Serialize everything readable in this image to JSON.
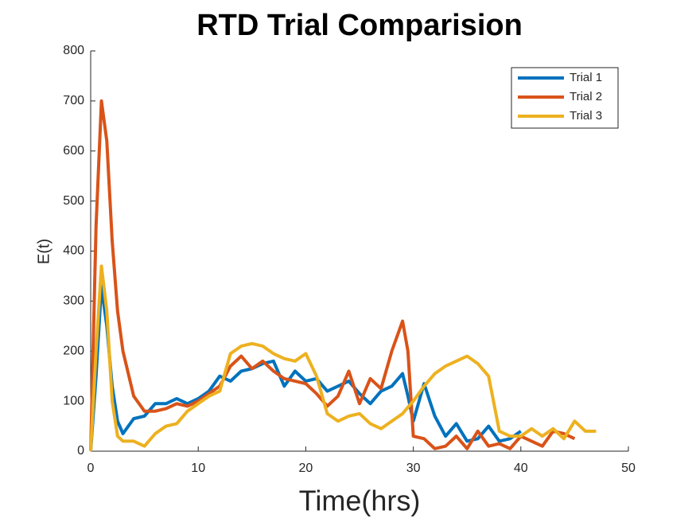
{
  "chart_data": {
    "type": "line",
    "title": "RTD Trial Comparision",
    "xlabel": "Time(hrs)",
    "ylabel": "E(t)",
    "x": [
      0,
      0.5,
      1,
      1.5,
      2,
      2.5,
      3,
      4,
      5,
      6,
      7,
      8,
      9,
      10,
      11,
      12,
      13,
      14,
      15,
      16,
      17,
      18,
      19,
      20,
      21,
      22,
      23,
      24,
      25,
      26,
      27,
      28,
      29,
      29.5,
      30,
      31,
      32,
      33,
      34,
      35,
      36,
      37,
      38,
      39,
      40,
      41,
      42,
      43,
      44,
      45,
      46,
      47
    ],
    "series": [
      {
        "name": "Trial 1",
        "color": "#0072bd",
        "values": [
          0,
          150,
          330,
          250,
          130,
          60,
          35,
          65,
          70,
          95,
          95,
          105,
          95,
          105,
          120,
          150,
          140,
          160,
          165,
          175,
          180,
          130,
          160,
          140,
          145,
          120,
          130,
          140,
          115,
          95,
          120,
          130,
          155,
          110,
          60,
          135,
          70,
          30,
          55,
          20,
          25,
          50,
          20,
          25,
          40,
          null,
          null,
          null,
          null,
          null,
          null,
          null
        ]
      },
      {
        "name": "Trial 2",
        "color": "#d95319",
        "values": [
          0,
          450,
          700,
          620,
          420,
          280,
          200,
          110,
          80,
          80,
          85,
          95,
          90,
          100,
          115,
          130,
          170,
          190,
          165,
          180,
          160,
          145,
          140,
          135,
          115,
          90,
          110,
          160,
          95,
          145,
          125,
          200,
          260,
          200,
          30,
          25,
          5,
          10,
          30,
          5,
          40,
          10,
          15,
          5,
          30,
          20,
          10,
          40,
          35,
          25,
          null,
          null
        ]
      },
      {
        "name": "Trial 3",
        "color": "#edb120",
        "values": [
          0,
          200,
          370,
          280,
          100,
          30,
          20,
          20,
          10,
          35,
          50,
          55,
          80,
          95,
          110,
          120,
          195,
          210,
          215,
          210,
          195,
          185,
          180,
          195,
          150,
          75,
          60,
          70,
          75,
          55,
          45,
          60,
          75,
          88,
          100,
          130,
          155,
          170,
          180,
          190,
          175,
          150,
          40,
          30,
          30,
          45,
          30,
          45,
          25,
          60,
          40,
          40
        ]
      }
    ],
    "xlim": [
      0,
      50
    ],
    "xticks": [
      0,
      10,
      20,
      30,
      40,
      50
    ],
    "ylim": [
      0,
      800
    ],
    "yticks": [
      0,
      100,
      200,
      300,
      400,
      500,
      600,
      700,
      800
    ],
    "legend": "upper right",
    "grid": false
  }
}
